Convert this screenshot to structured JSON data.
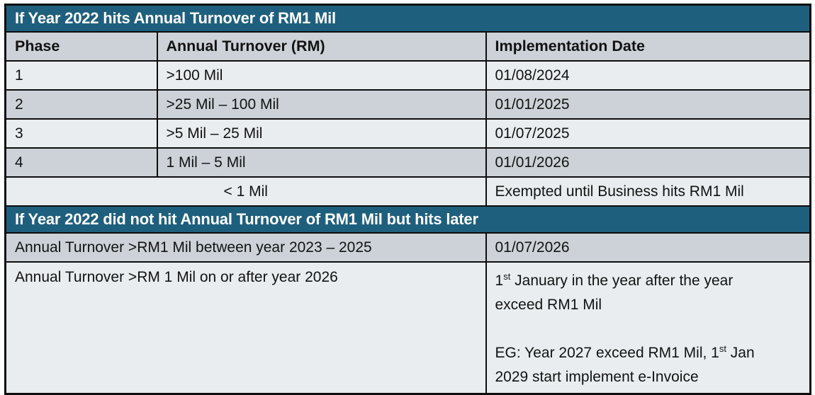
{
  "colors": {
    "section_header_bg": "#1F5F7E",
    "section_header_text": "#FFFFFF",
    "row_gray": "#CDD2D8",
    "row_light": "#E9EDF0",
    "border": "#0D0D0D",
    "body_text": "#121212"
  },
  "section1": {
    "title": "If Year 2022 hits Annual Turnover of RM1 Mil",
    "columns": {
      "phase": "Phase",
      "turnover": "Annual Turnover (RM)",
      "date": "Implementation Date"
    },
    "rows": [
      {
        "phase": "1",
        "turnover": ">100 Mil",
        "date": "01/08/2024"
      },
      {
        "phase": "2",
        "turnover": ">25 Mil – 100 Mil",
        "date": "01/01/2025"
      },
      {
        "phase": "3",
        "turnover": ">5 Mil – 25 Mil",
        "date": "01/07/2025"
      },
      {
        "phase": "4",
        "turnover": "1 Mil – 5 Mil",
        "date": "01/01/2026"
      }
    ],
    "exempt_row": {
      "turnover": "< 1 Mil",
      "date": "Exempted until Business hits RM1 Mil"
    }
  },
  "section2": {
    "title": "If Year 2022 did not hit Annual Turnover of RM1 Mil but hits later",
    "row_between": {
      "condition": "Annual Turnover >RM1 Mil between year 2023 – 2025",
      "date": "01/07/2026"
    },
    "row_after": {
      "condition": "Annual Turnover >RM 1 Mil on or after year 2026",
      "date_lines": [
        {
          "pre": "1",
          "sup": "st",
          "post": " January in the year after the year"
        },
        {
          "pre": "exceed RM1 Mil",
          "sup": "",
          "post": ""
        },
        {
          "pre": "",
          "sup": "",
          "post": ""
        },
        {
          "pre": "EG: Year 2027 exceed RM1 Mil, 1",
          "sup": "st",
          "post": " Jan"
        },
        {
          "pre": "2029 start implement e-Invoice",
          "sup": "",
          "post": ""
        }
      ]
    }
  }
}
